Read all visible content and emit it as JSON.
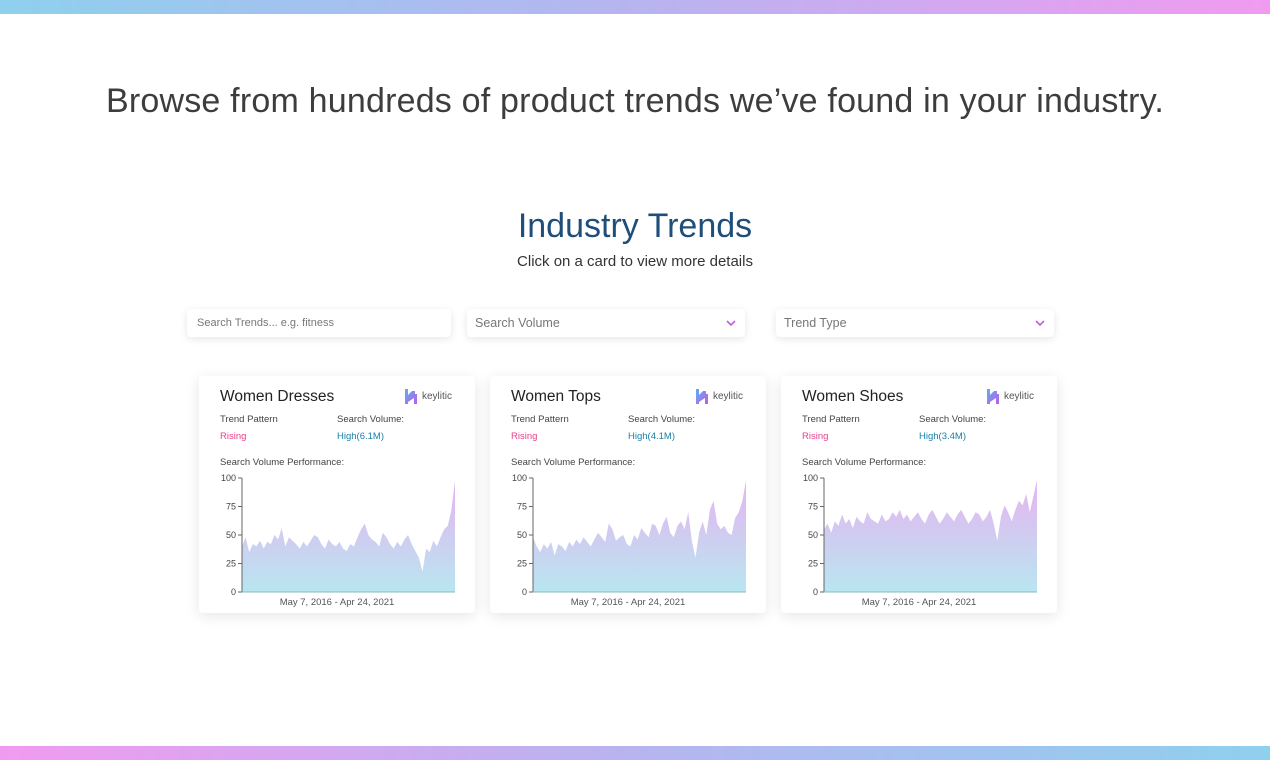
{
  "colors": {
    "gradient_start": "#8fd0ee",
    "gradient_end": "#f19bf0",
    "title_blue": "#1f4e7a",
    "rising_pink": "#e9408f",
    "volume_teal": "#1a7fa8",
    "area_top": "#e7b3f1",
    "area_bottom": "#b8e6f0"
  },
  "headline": "Browse from hundreds of product trends we’ve found in your industry.",
  "section": {
    "title": "Industry Trends",
    "subtitle": "Click on a card to view more details"
  },
  "filters": {
    "search_placeholder": "Search Trends... e.g. fitness",
    "volume_label": "Search Volume",
    "type_label": "Trend Type",
    "chevron_icon": "chevron-down-icon"
  },
  "cards": [
    {
      "title": "Women Dresses",
      "brand": "keylitic",
      "pattern_label": "Trend Pattern",
      "pattern_value": "Rising",
      "volume_label": "Search Volume:",
      "volume_value": "High(6.1M)",
      "perf_label": "Search Volume Performance:",
      "date_range": "May 7, 2016 - Apr 24, 2021"
    },
    {
      "title": "Women Tops",
      "brand": "keylitic",
      "pattern_label": "Trend Pattern",
      "pattern_value": "Rising",
      "volume_label": "Search Volume:",
      "volume_value": "High(4.1M)",
      "perf_label": "Search Volume Performance:",
      "date_range": "May 7, 2016 - Apr 24, 2021"
    },
    {
      "title": "Women Shoes",
      "brand": "keylitic",
      "pattern_label": "Trend Pattern",
      "pattern_value": "Rising",
      "volume_label": "Search Volume:",
      "volume_value": "High(3.4M)",
      "perf_label": "Search Volume Performance:",
      "date_range": "May 7, 2016 - Apr 24, 2021"
    }
  ],
  "chart_data": [
    {
      "type": "area",
      "title": "Women Dresses",
      "xlabel": "May 7, 2016 - Apr 24, 2021",
      "ylim": [
        0,
        100
      ],
      "yticks": [
        0,
        25,
        50,
        75,
        100
      ],
      "series": [
        {
          "name": "Women Dresses",
          "values": [
            40,
            48,
            35,
            42,
            40,
            45,
            38,
            44,
            42,
            50,
            46,
            56,
            40,
            48,
            45,
            42,
            38,
            44,
            40,
            45,
            50,
            48,
            42,
            38,
            46,
            42,
            40,
            44,
            38,
            36,
            42,
            40,
            48,
            55,
            60,
            50,
            46,
            44,
            40,
            52,
            48,
            42,
            38,
            44,
            40,
            46,
            50,
            42,
            36,
            30,
            18,
            38,
            35,
            45,
            40,
            48,
            55,
            58,
            72,
            98
          ]
        }
      ]
    },
    {
      "type": "area",
      "title": "Women Tops",
      "xlabel": "May 7, 2016 - Apr 24, 2021",
      "ylim": [
        0,
        100
      ],
      "yticks": [
        0,
        25,
        50,
        75,
        100
      ],
      "series": [
        {
          "name": "Women Tops",
          "values": [
            48,
            40,
            35,
            42,
            38,
            44,
            32,
            42,
            40,
            36,
            44,
            40,
            46,
            42,
            48,
            44,
            40,
            46,
            52,
            48,
            44,
            60,
            55,
            45,
            48,
            50,
            42,
            40,
            50,
            46,
            56,
            52,
            48,
            60,
            58,
            50,
            60,
            66,
            52,
            48,
            58,
            62,
            55,
            70,
            45,
            30,
            52,
            62,
            50,
            72,
            80,
            60,
            55,
            58,
            52,
            50,
            65,
            70,
            80,
            98
          ]
        }
      ]
    },
    {
      "type": "area",
      "title": "Women Shoes",
      "xlabel": "May 7, 2016 - Apr 24, 2021",
      "ylim": [
        0,
        100
      ],
      "yticks": [
        0,
        25,
        50,
        75,
        100
      ],
      "series": [
        {
          "name": "Women Shoes",
          "values": [
            55,
            60,
            52,
            62,
            58,
            68,
            60,
            64,
            56,
            66,
            62,
            60,
            70,
            64,
            62,
            60,
            68,
            62,
            64,
            70,
            66,
            72,
            64,
            68,
            62,
            66,
            70,
            64,
            60,
            68,
            72,
            66,
            60,
            64,
            70,
            66,
            62,
            68,
            72,
            66,
            60,
            64,
            70,
            68,
            62,
            66,
            72,
            60,
            45,
            66,
            76,
            70,
            62,
            72,
            80,
            76,
            86,
            70,
            84,
            98
          ]
        }
      ]
    }
  ]
}
